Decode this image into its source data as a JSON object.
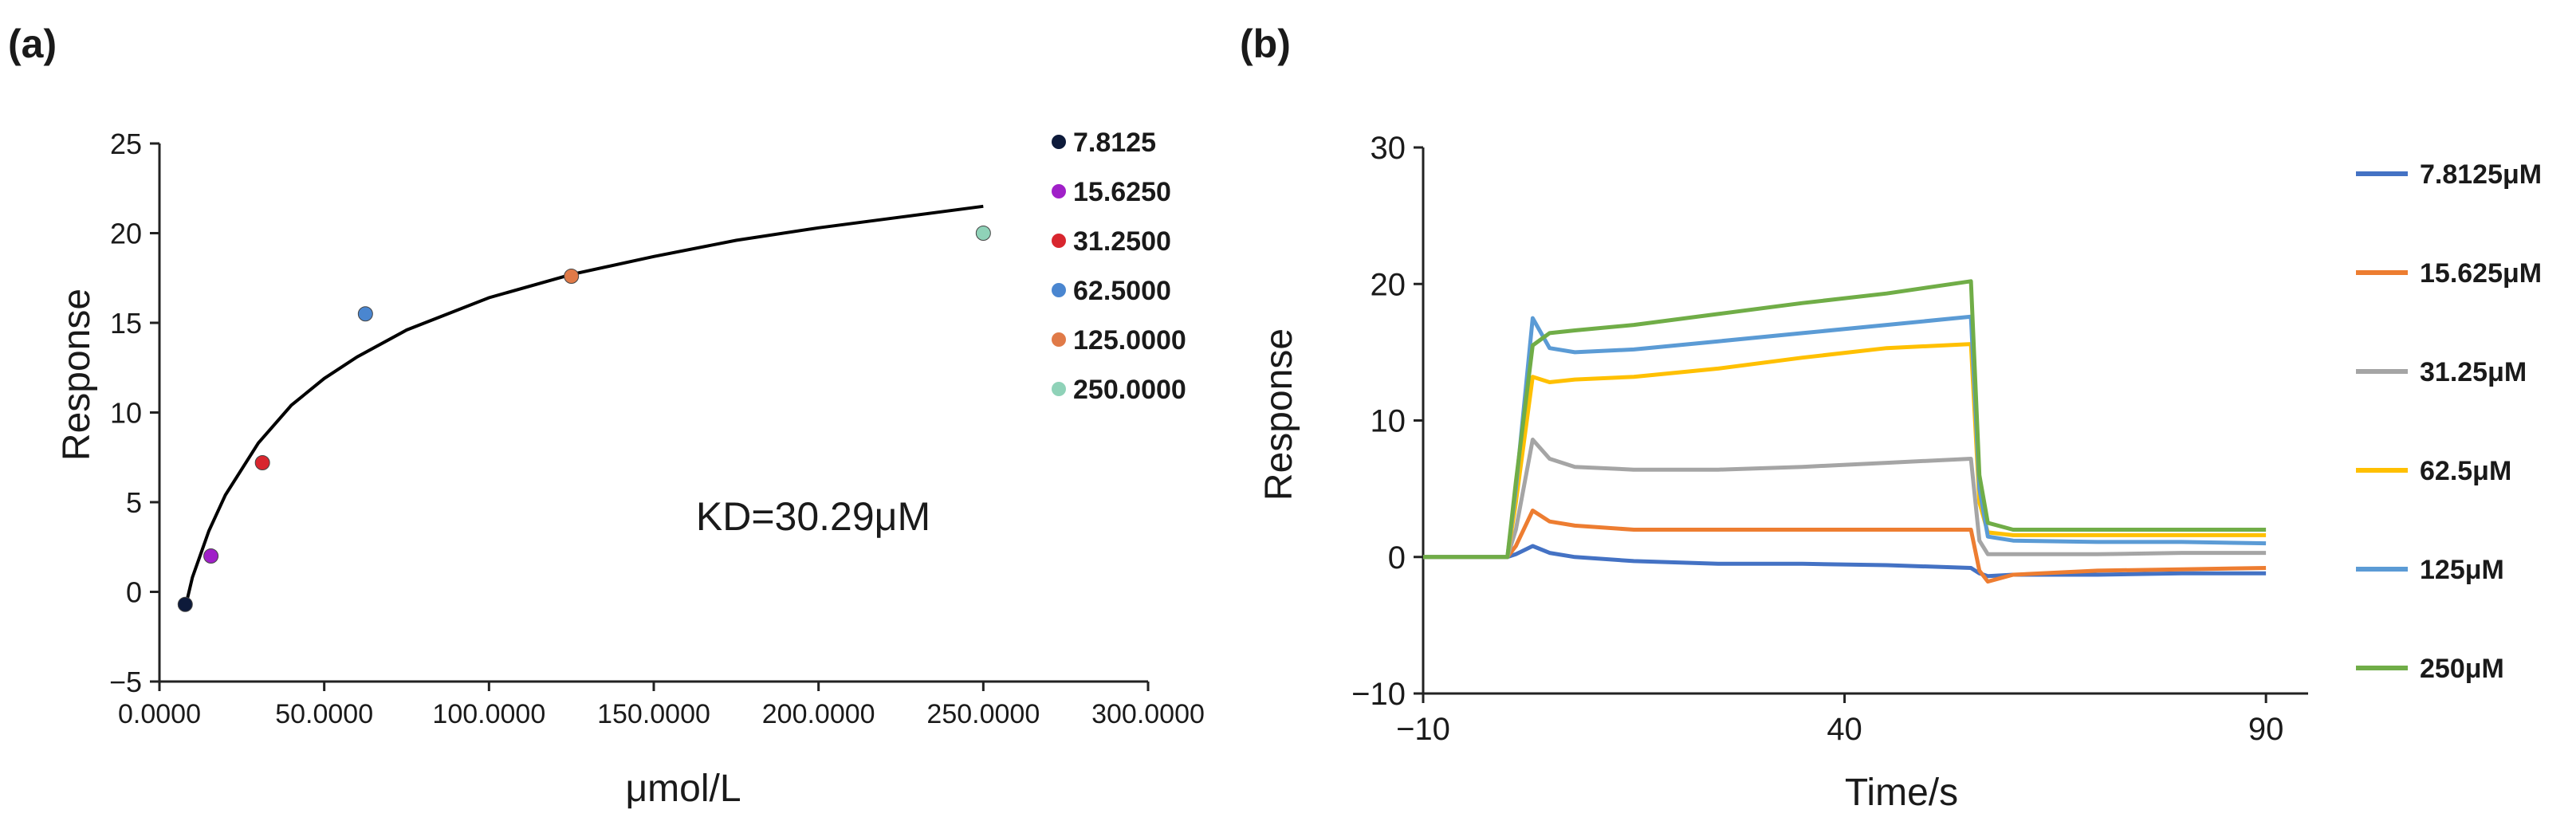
{
  "chart_data": [
    {
      "panel_label": "(a)",
      "type": "scatter",
      "xlabel": "μmol/L",
      "ylabel": "Response",
      "xlim": [
        0,
        300
      ],
      "ylim": [
        -5,
        25
      ],
      "x_ticks": [
        "0.0000",
        "50.0000",
        "100.0000",
        "150.0000",
        "200.0000",
        "250.0000",
        "300.0000"
      ],
      "y_ticks": [
        "−5",
        "0",
        "5",
        "10",
        "15",
        "20",
        "25"
      ],
      "annotation": "KD=30.29μM",
      "legend_position": "right",
      "grid": false,
      "series": [
        {
          "name": "7.8125",
          "x": 7.8125,
          "y": -0.7,
          "color": "#0d1a3a"
        },
        {
          "name": "15.6250",
          "x": 15.625,
          "y": 2.0,
          "color": "#a020c8"
        },
        {
          "name": "31.2500",
          "x": 31.25,
          "y": 7.2,
          "color": "#d8262e"
        },
        {
          "name": "62.5000",
          "x": 62.5,
          "y": 15.5,
          "color": "#4a86d0"
        },
        {
          "name": "125.0000",
          "x": 125,
          "y": 17.6,
          "color": "#e07a48"
        },
        {
          "name": "250.0000",
          "x": 250,
          "y": 20.0,
          "color": "#8fd2b8"
        }
      ],
      "fit_curve": {
        "type": "line",
        "color": "#000000",
        "x": [
          7.8,
          10,
          15,
          20,
          30,
          40,
          50,
          60,
          75,
          100,
          125,
          150,
          175,
          200,
          225,
          250
        ],
        "y": [
          -0.9,
          0.8,
          3.4,
          5.4,
          8.3,
          10.4,
          11.9,
          13.1,
          14.6,
          16.4,
          17.7,
          18.7,
          19.6,
          20.3,
          20.9,
          21.5
        ]
      }
    },
    {
      "panel_label": "(b)",
      "type": "line",
      "xlabel": "Time/s",
      "ylabel": "Response",
      "xlim": [
        -10,
        95
      ],
      "ylim": [
        -10,
        30
      ],
      "x_ticks": [
        "−10",
        "40",
        "90"
      ],
      "y_ticks": [
        "−10",
        "0",
        "10",
        "20",
        "30"
      ],
      "legend_position": "right",
      "grid": false,
      "series": [
        {
          "name": "7.8125μM",
          "color": "#4472c4",
          "x": [
            -10,
            0,
            1,
            3,
            5,
            8,
            15,
            25,
            35,
            45,
            55,
            56,
            57,
            60,
            70,
            80,
            90
          ],
          "y": [
            0,
            0,
            0.2,
            0.8,
            0.3,
            0,
            -0.3,
            -0.5,
            -0.5,
            -0.6,
            -0.8,
            -1.2,
            -1.4,
            -1.3,
            -1.3,
            -1.2,
            -1.2
          ]
        },
        {
          "name": "15.625μM",
          "color": "#ed7d31",
          "x": [
            -10,
            0,
            1,
            3,
            5,
            8,
            15,
            25,
            35,
            45,
            55,
            56,
            57,
            60,
            70,
            80,
            90
          ],
          "y": [
            0,
            0,
            0.8,
            3.4,
            2.6,
            2.3,
            2.0,
            2.0,
            2.0,
            2.0,
            2.0,
            -1.0,
            -1.8,
            -1.3,
            -1.0,
            -0.9,
            -0.8
          ]
        },
        {
          "name": "31.25μM",
          "color": "#a5a5a5",
          "x": [
            -10,
            0,
            1,
            3,
            5,
            8,
            15,
            25,
            35,
            45,
            55,
            56,
            57,
            60,
            70,
            80,
            90
          ],
          "y": [
            0,
            0,
            2.0,
            8.6,
            7.2,
            6.6,
            6.4,
            6.4,
            6.6,
            6.9,
            7.2,
            1.2,
            0.2,
            0.2,
            0.2,
            0.3,
            0.3
          ]
        },
        {
          "name": "62.5μM",
          "color": "#ffc000",
          "x": [
            -10,
            0,
            1,
            3,
            5,
            8,
            15,
            25,
            35,
            45,
            55,
            56,
            57,
            60,
            70,
            80,
            90
          ],
          "y": [
            0,
            0,
            4.0,
            13.2,
            12.8,
            13.0,
            13.2,
            13.8,
            14.6,
            15.3,
            15.6,
            4.0,
            1.8,
            1.6,
            1.6,
            1.6,
            1.6
          ]
        },
        {
          "name": "125μM",
          "color": "#5b9bd5",
          "x": [
            -10,
            0,
            1,
            3,
            5,
            8,
            15,
            25,
            35,
            45,
            55,
            56,
            57,
            60,
            70,
            80,
            90
          ],
          "y": [
            0,
            0,
            5.0,
            17.5,
            15.3,
            15.0,
            15.2,
            15.8,
            16.4,
            17.0,
            17.6,
            5.0,
            1.5,
            1.2,
            1.1,
            1.1,
            1.0
          ]
        },
        {
          "name": "250μM",
          "color": "#70ad47",
          "x": [
            -10,
            0,
            1,
            3,
            5,
            8,
            15,
            25,
            35,
            45,
            55,
            56,
            57,
            60,
            70,
            80,
            90
          ],
          "y": [
            0,
            0,
            5.5,
            15.5,
            16.4,
            16.6,
            17.0,
            17.8,
            18.6,
            19.3,
            20.2,
            6.0,
            2.5,
            2.0,
            2.0,
            2.0,
            2.0
          ]
        }
      ]
    }
  ]
}
